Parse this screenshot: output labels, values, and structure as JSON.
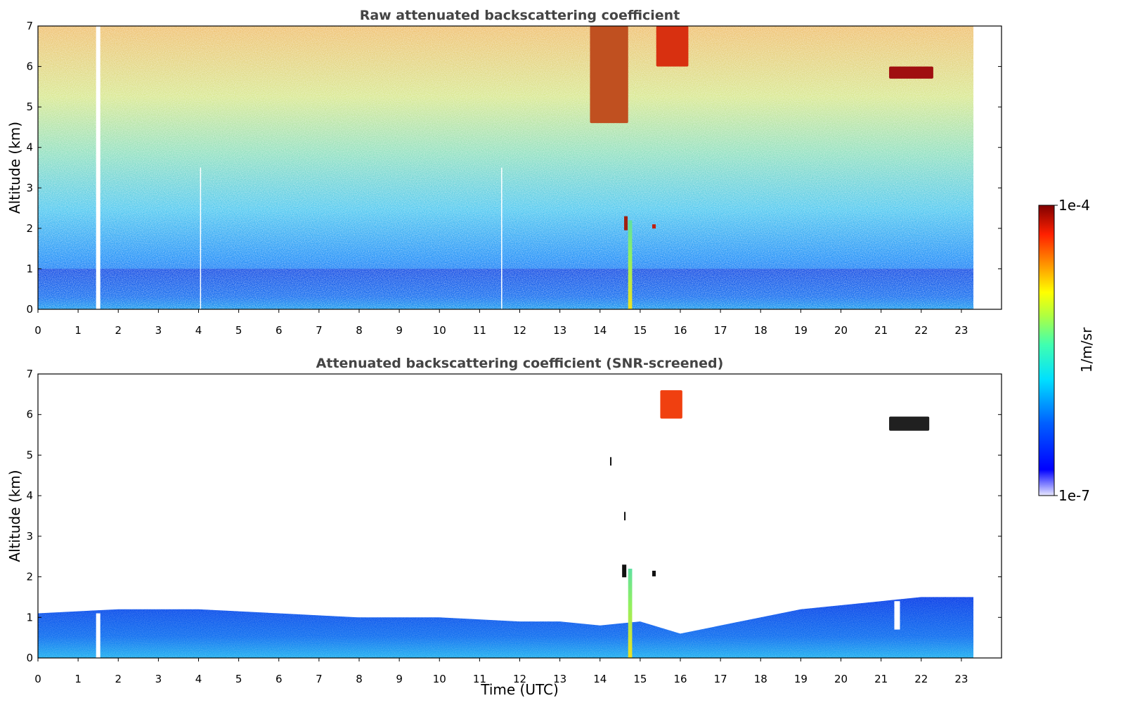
{
  "chart_data": [
    {
      "type": "heatmap",
      "title": "Raw attenuated backscattering coefficient",
      "xlabel": "",
      "ylabel": "Altitude (km)",
      "xlim": [
        0,
        24
      ],
      "ylim": [
        0,
        7
      ],
      "xticks": [
        "0",
        "1",
        "2",
        "3",
        "4",
        "5",
        "6",
        "7",
        "8",
        "9",
        "10",
        "11",
        "12",
        "13",
        "14",
        "15",
        "16",
        "17",
        "18",
        "19",
        "20",
        "21",
        "22",
        "23"
      ],
      "yticks": [
        "0",
        "1",
        "2",
        "3",
        "4",
        "5",
        "6",
        "7"
      ],
      "data_end_hour": 23.3,
      "gaps_hours": [
        1.5,
        4.05,
        11.55
      ],
      "features": [
        {
          "name": "boundary layer",
          "x": [
            0,
            23.3
          ],
          "y": [
            0,
            1.0
          ],
          "level": "low-mid (blue)"
        },
        {
          "name": "precipitation / plume column",
          "x": [
            14.7,
            14.8
          ],
          "y": [
            0,
            2.2
          ],
          "level": "mid-high (yellow-green)"
        },
        {
          "name": "cloud",
          "x": [
            15.4,
            16.2
          ],
          "y": [
            5.8,
            7.0
          ],
          "level": "high (red)"
        },
        {
          "name": "cloud",
          "x": [
            21.2,
            22.3
          ],
          "y": [
            5.5,
            6.0
          ],
          "level": "high (dark red)"
        }
      ]
    },
    {
      "type": "heatmap",
      "title": "Attenuated backscattering coefficient (SNR-screened)",
      "xlabel": "Time (UTC)",
      "ylabel": "Altitude (km)",
      "xlim": [
        0,
        24
      ],
      "ylim": [
        0,
        7
      ],
      "xticks": [
        "0",
        "1",
        "2",
        "3",
        "4",
        "5",
        "6",
        "7",
        "8",
        "9",
        "10",
        "11",
        "12",
        "13",
        "14",
        "15",
        "16",
        "17",
        "18",
        "19",
        "20",
        "21",
        "22",
        "23"
      ],
      "yticks": [
        "0",
        "1",
        "2",
        "3",
        "4",
        "5",
        "6",
        "7"
      ],
      "data_end_hour": 23.3,
      "boundary_layer_top_km": [
        [
          0,
          1.1
        ],
        [
          2,
          1.2
        ],
        [
          4,
          1.2
        ],
        [
          6,
          1.1
        ],
        [
          8,
          1.0
        ],
        [
          10,
          1.0
        ],
        [
          12,
          0.9
        ],
        [
          13,
          0.9
        ],
        [
          14,
          0.8
        ],
        [
          15,
          0.9
        ],
        [
          16,
          0.6
        ],
        [
          17,
          0.8
        ],
        [
          18,
          1.0
        ],
        [
          19,
          1.2
        ],
        [
          20,
          1.3
        ],
        [
          21,
          1.4
        ],
        [
          22,
          1.5
        ],
        [
          23.3,
          1.5
        ]
      ],
      "features": [
        {
          "name": "cloud",
          "x": [
            15.4,
            16.1
          ],
          "y": [
            5.8,
            6.6
          ],
          "level": "high (red)"
        },
        {
          "name": "cloud",
          "x": [
            21.2,
            22.2
          ],
          "y": [
            5.5,
            6.0
          ],
          "level": "saturated (black)"
        }
      ]
    }
  ],
  "colorbar": {
    "label": "1/m/sr",
    "min_label": "1e-7",
    "max_label": "1e-4",
    "scale": "log",
    "colors": [
      "#00007f",
      "#0000ff",
      "#007fff",
      "#00ffff",
      "#7fff7f",
      "#ffff00",
      "#ff7f00",
      "#ff0000",
      "#7f0000"
    ]
  }
}
